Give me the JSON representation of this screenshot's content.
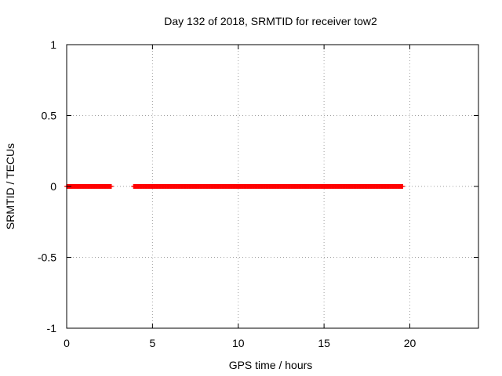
{
  "chart_data": {
    "type": "scatter",
    "title": "Day 132 of 2018, SRMTID for receiver tow2",
    "xlabel": "GPS time / hours",
    "ylabel": "SRMTID / TECUs",
    "xlim": [
      0,
      24
    ],
    "ylim": [
      -1,
      1
    ],
    "xticks": [
      0,
      5,
      10,
      15,
      20
    ],
    "yticks": [
      -1,
      -0.5,
      0,
      0.5,
      1
    ],
    "xtick_labels": [
      "0",
      "5",
      "10",
      "15",
      "20"
    ],
    "ytick_labels": [
      "-1",
      "-0.5",
      "0",
      "0.5",
      "1"
    ],
    "grid": true,
    "marker": "plus",
    "series": [
      {
        "name": "SRMTID",
        "color": "#ff0000",
        "segments": [
          {
            "x_start": 0.0,
            "x_end": 2.6,
            "step": 0.04,
            "y": 0
          },
          {
            "x_start": 3.9,
            "x_end": 19.6,
            "step": 0.04,
            "y": 0
          }
        ]
      }
    ]
  }
}
